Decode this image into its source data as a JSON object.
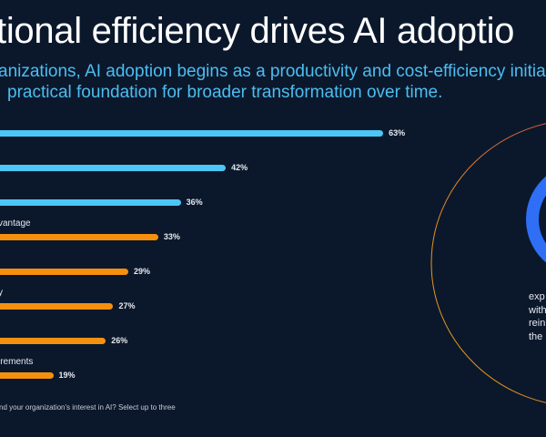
{
  "header": {
    "title": "tional efficiency drives AI adoptio",
    "subtitle_lines": [
      "anizations, AI adoption begins as a productivity and cost-efficiency initia",
      "practical foundation for broader transformation over time."
    ]
  },
  "chart_data": {
    "type": "bar",
    "orientation": "horizontal",
    "categories": [
      "",
      "",
      "",
      "vantage",
      "",
      "y",
      "",
      "irements"
    ],
    "values": [
      63,
      42,
      36,
      33,
      29,
      27,
      26,
      19
    ],
    "value_labels": [
      "63%",
      "42%",
      "36%",
      "33%",
      "29%",
      "27%",
      "26%",
      "19%"
    ],
    "colors": [
      "#4cc6f5",
      "#4cc6f5",
      "#4cc6f5",
      "#f5900f",
      "#f5900f",
      "#f5900f",
      "#f5900f",
      "#f5900f"
    ],
    "footnote": "nd your organization's interest in AI? Select up to three"
  },
  "side_panel": {
    "text_lines": [
      "exp",
      "with",
      "rein",
      "the"
    ],
    "ring_color": "#2f6ff5",
    "circle_gradient": [
      "#e8951a",
      "#c2246e"
    ]
  },
  "colors": {
    "background": "#0b182c",
    "accent_blue": "#4cc6f5",
    "accent_orange": "#f5900f"
  }
}
